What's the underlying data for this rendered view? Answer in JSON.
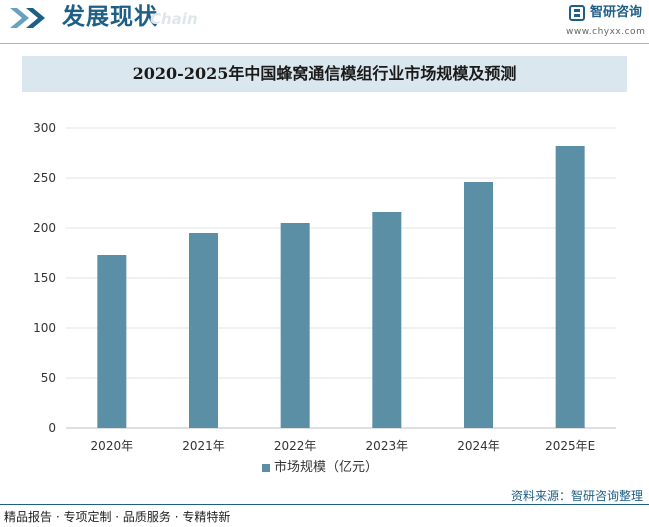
{
  "header": {
    "title": "发展现状",
    "subtitle": "Chain",
    "brand_name": "智研咨询",
    "brand_url": "www.chyxx.com"
  },
  "colors": {
    "bar": "#5b8fa6",
    "accent": "#1f5f86",
    "title_bg": "#dbe7ef",
    "grid": "#e3e3e3"
  },
  "chart_data": {
    "type": "bar",
    "title": "2020-2025年中国蜂窝通信模组行业市场规模及预测",
    "categories": [
      "2020年",
      "2021年",
      "2022年",
      "2023年",
      "2024年",
      "2025年E"
    ],
    "series": [
      {
        "name": "市场规模（亿元）",
        "values": [
          173,
          195,
          205,
          216,
          246,
          282
        ]
      }
    ],
    "ylim": [
      0,
      300
    ],
    "yticks": [
      0,
      50,
      100,
      150,
      200,
      250,
      300
    ],
    "grid": true,
    "legend": "bottom-center",
    "xlabel": "",
    "ylabel": ""
  },
  "footer": {
    "tagline": "精品报告 · 专项定制 · 品质服务 · 专精特新",
    "source": "资料来源：智研咨询整理"
  }
}
